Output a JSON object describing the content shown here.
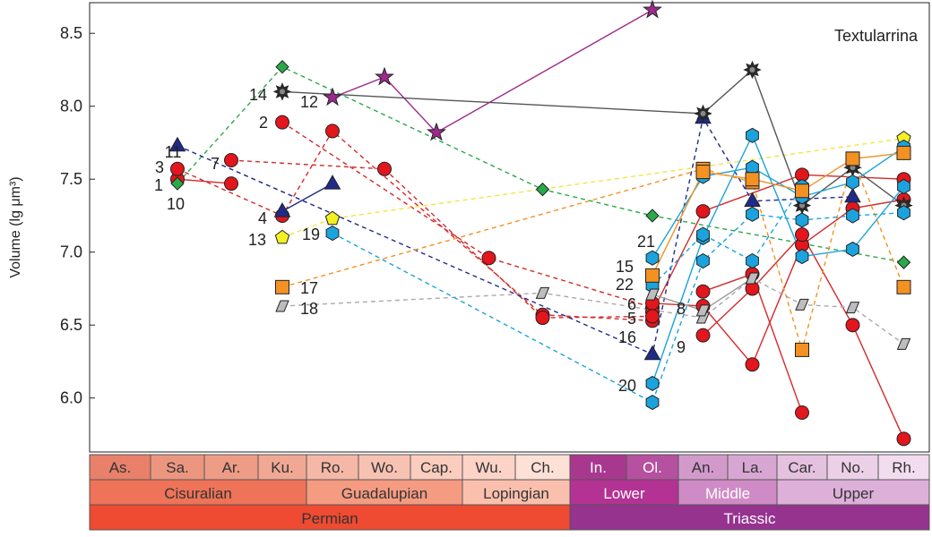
{
  "chart_data": {
    "type": "scatter",
    "title": "Textularrina",
    "ylabel": "Volume (lg μm³)",
    "xlabel": "",
    "ylim": [
      5.63,
      8.71
    ],
    "yticks": [
      "6.0",
      "6.5",
      "7.0",
      "7.5",
      "8.0",
      "8.5"
    ],
    "grid": false,
    "x_axis": "geologic time scale (stages)",
    "stages": [
      {
        "label": "As.",
        "color": "#e8806a"
      },
      {
        "label": "Sa.",
        "color": "#ec9680"
      },
      {
        "label": "Ar.",
        "color": "#ee9c86"
      },
      {
        "label": "Ku.",
        "color": "#f0a894"
      },
      {
        "label": "Ro.",
        "color": "#f5b7a6"
      },
      {
        "label": "Wo.",
        "color": "#f8c2b2"
      },
      {
        "label": "Cap.",
        "color": "#fbcdbe"
      },
      {
        "label": "Wu.",
        "color": "#fdd3c7"
      },
      {
        "label": "Ch.",
        "color": "#fde0d6"
      },
      {
        "label": "In.",
        "color": "#a8388e"
      },
      {
        "label": "Ol.",
        "color": "#b650a0"
      },
      {
        "label": "An.",
        "color": "#d29acb"
      },
      {
        "label": "La.",
        "color": "#d8a6d2"
      },
      {
        "label": "Car.",
        "color": "#e5c1e0"
      },
      {
        "label": "No.",
        "color": "#ecd0e8"
      },
      {
        "label": "Rh.",
        "color": "#f2dcef"
      }
    ],
    "epochs": [
      {
        "label": "Cisuralian",
        "color": "#ef7358"
      },
      {
        "label": "Guadalupian",
        "color": "#f59b82"
      },
      {
        "label": "Lopingian",
        "color": "#fbc0ad"
      },
      {
        "label": "Lower",
        "color": "#b33294"
      },
      {
        "label": "Middle",
        "color": "#cf8bc5"
      },
      {
        "label": "Upper",
        "color": "#ddb0d9"
      }
    ],
    "periods": [
      {
        "label": "Permian",
        "color": "#ef4a32"
      },
      {
        "label": "Triassic",
        "color": "#96338f"
      }
    ],
    "marker_colors": {
      "red": "#e2161c",
      "blue": "#1ca3dd",
      "green": "#2aa94a",
      "navy": "#1f2a8a",
      "orange": "#f39122",
      "yellow": "#f5f121",
      "gray": "#bdbdbd",
      "purple": "#9c2b8c",
      "black": "#2b2b2b"
    },
    "series": [
      {
        "name": "1",
        "marker": "circle",
        "color": "red",
        "line": "solid",
        "stroke": "#d42a2a",
        "points": [
          [
            "Sa.",
            7.5
          ],
          [
            "Ar.",
            7.47
          ]
        ]
      },
      {
        "name": "2",
        "marker": "circle",
        "color": "red",
        "line": "dashed",
        "stroke": "#d42a2a",
        "points": [
          [
            "Ku.",
            7.89
          ],
          [
            "Wu.",
            6.96
          ],
          [
            "Ol.",
            6.62
          ]
        ]
      },
      {
        "name": "3",
        "marker": "circle",
        "color": "red",
        "line": "dashed",
        "stroke": "#d42a2a",
        "points": [
          [
            "Sa.",
            7.57
          ],
          [
            "Ku.",
            7.25
          ],
          [
            "Ro.",
            7.83
          ],
          [
            "Ch.",
            6.57
          ],
          [
            "Ol.",
            6.53
          ]
        ]
      },
      {
        "name": "4",
        "marker": "triangle",
        "color": "navy",
        "line": "solid",
        "stroke": "#1f2a8a",
        "points": [
          [
            "Ku.",
            7.28
          ],
          [
            "Ro.",
            7.47
          ]
        ]
      },
      {
        "name": "5",
        "marker": "circle",
        "color": "red",
        "line": "solid",
        "stroke": "#d42a2a",
        "points": [
          [
            "Ol.",
            6.59
          ],
          [
            "An.",
            7.28
          ],
          [
            "Car.",
            7.53
          ],
          [
            "Rh.",
            7.5
          ]
        ]
      },
      {
        "name": "6",
        "marker": "circle",
        "color": "red",
        "line": "solid",
        "stroke": "#d42a2a",
        "points": [
          [
            "Ol.",
            6.65
          ],
          [
            "An.",
            6.63
          ],
          [
            "La.",
            6.23
          ],
          [
            "Car.",
            7.05
          ],
          [
            "No.",
            7.3
          ],
          [
            "Rh.",
            7.36
          ]
        ]
      },
      {
        "name": "7",
        "marker": "circle",
        "color": "red",
        "line": "dashed",
        "stroke": "#d42a2a",
        "points": [
          [
            "Ar.",
            7.63
          ],
          [
            "Wo.",
            7.57
          ],
          [
            "Ch.",
            6.55
          ],
          [
            "Ol.",
            6.56
          ]
        ]
      },
      {
        "name": "8",
        "marker": "circle",
        "color": "red",
        "line": "solid",
        "stroke": "#d42a2a",
        "points": [
          [
            "An.",
            6.73
          ],
          [
            "La.",
            6.85
          ],
          [
            "Car.",
            5.9
          ]
        ]
      },
      {
        "name": "9",
        "marker": "circle",
        "color": "red",
        "line": "solid",
        "stroke": "#d42a2a",
        "points": [
          [
            "An.",
            6.43
          ],
          [
            "La.",
            6.75
          ],
          [
            "Car.",
            7.12
          ],
          [
            "No.",
            6.5
          ],
          [
            "Rh.",
            5.72
          ]
        ]
      },
      {
        "name": "10",
        "marker": "diamond",
        "color": "green",
        "line": "dashed",
        "stroke": "#2aa94a",
        "points": [
          [
            "Sa.",
            7.47
          ],
          [
            "Ku.",
            8.27
          ],
          [
            "Ch.",
            7.43
          ],
          [
            "Ol.",
            7.25
          ],
          [
            "Rh.",
            6.93
          ]
        ]
      },
      {
        "name": "11",
        "marker": "triangle",
        "color": "navy",
        "line": "dashed",
        "stroke": "#1f2a8a",
        "points": [
          [
            "Sa.",
            7.73
          ],
          [
            "Ol.",
            6.3
          ],
          [
            "An.",
            7.92
          ],
          [
            "La.",
            7.35
          ],
          [
            "No.",
            7.38
          ]
        ]
      },
      {
        "name": "12",
        "marker": "star",
        "color": "purple",
        "line": "solid",
        "stroke": "#9c2b8c",
        "points": [
          [
            "Ro.",
            8.06
          ],
          [
            "Wo.",
            8.2
          ],
          [
            "Cap.",
            7.82
          ],
          [
            "Ol.",
            8.66
          ]
        ]
      },
      {
        "name": "13",
        "marker": "pentagon",
        "color": "yellow",
        "line": "dashed",
        "stroke": "#f2e640",
        "points": [
          [
            "Ku.",
            7.1
          ],
          [
            "Ro.",
            7.23
          ],
          [
            "Rh.",
            7.78
          ]
        ]
      },
      {
        "name": "14",
        "marker": "burst",
        "color": "black",
        "line": "solid",
        "stroke": "#555555",
        "points": [
          [
            "Ku.",
            8.1
          ],
          [
            "An.",
            7.95
          ],
          [
            "La.",
            8.25
          ],
          [
            "Car.",
            7.32
          ],
          [
            "No.",
            7.58
          ],
          [
            "Rh.",
            7.32
          ]
        ]
      },
      {
        "name": "15",
        "marker": "hexagon",
        "color": "blue",
        "line": "solid",
        "stroke": "#1ca3dd",
        "points": [
          [
            "Ol.",
            6.96
          ],
          [
            "An.",
            7.52
          ],
          [
            "La.",
            7.58
          ],
          [
            "Car.",
            7.38
          ],
          [
            "No.",
            7.48
          ],
          [
            "Rh.",
            7.72
          ]
        ]
      },
      {
        "name": "16",
        "marker": "hexagon",
        "color": "blue",
        "line": "solid",
        "stroke": "#1ca3dd",
        "points": [
          [
            "Ol.",
            6.1
          ],
          [
            "An.",
            7.1
          ],
          [
            "La.",
            7.8
          ],
          [
            "Car.",
            6.97
          ],
          [
            "No.",
            7.02
          ],
          [
            "Rh.",
            7.45
          ]
        ]
      },
      {
        "name": "17",
        "marker": "square",
        "color": "orange",
        "line": "dashed",
        "stroke": "#f39122",
        "points": [
          [
            "Ku.",
            6.76
          ],
          [
            "An.",
            7.57
          ],
          [
            "La.",
            7.48
          ],
          [
            "Car.",
            6.33
          ],
          [
            "No.",
            7.64
          ],
          [
            "Rh.",
            6.76
          ]
        ]
      },
      {
        "name": "18",
        "marker": "parallelogram",
        "color": "gray",
        "line": "dashed",
        "stroke": "#aaaaaa",
        "points": [
          [
            "Ku.",
            6.63
          ],
          [
            "Ch.",
            6.72
          ],
          [
            "An.",
            6.55
          ],
          [
            "La.",
            6.82
          ],
          [
            "Car.",
            6.64
          ],
          [
            "No.",
            6.62
          ],
          [
            "Rh.",
            6.37
          ]
        ]
      },
      {
        "name": "19",
        "marker": "hexagon",
        "color": "blue",
        "line": "dashed",
        "stroke": "#1ca3dd",
        "points": [
          [
            "Ro.",
            7.13
          ],
          [
            "Ol.",
            5.97
          ],
          [
            "An.",
            6.94
          ],
          [
            "La.",
            7.26
          ],
          [
            "Car.",
            7.22
          ],
          [
            "No.",
            7.25
          ],
          [
            "Rh.",
            7.27
          ]
        ]
      },
      {
        "name": "20",
        "marker": "hexagon",
        "color": "blue",
        "line": "dashed",
        "stroke": "#1ca3dd",
        "points": [
          [
            "Ol.",
            6.77
          ],
          [
            "An.",
            7.12
          ],
          [
            "La.",
            6.94
          ],
          [
            "Car.",
            7.45
          ]
        ]
      },
      {
        "name": "21",
        "marker": "square",
        "color": "orange",
        "line": "solid",
        "stroke": "#f39122",
        "points": [
          [
            "Ol.",
            6.84
          ],
          [
            "An.",
            7.55
          ],
          [
            "La.",
            7.5
          ],
          [
            "Car.",
            7.42
          ],
          [
            "No.",
            7.64
          ],
          [
            "Rh.",
            7.68
          ]
        ]
      },
      {
        "name": "22",
        "marker": "parallelogram",
        "color": "gray",
        "line": "solid",
        "stroke": "#999999",
        "points": [
          [
            "Ol.",
            6.71
          ],
          [
            "An.",
            6.6
          ],
          [
            "La.",
            6.82
          ]
        ]
      }
    ]
  }
}
